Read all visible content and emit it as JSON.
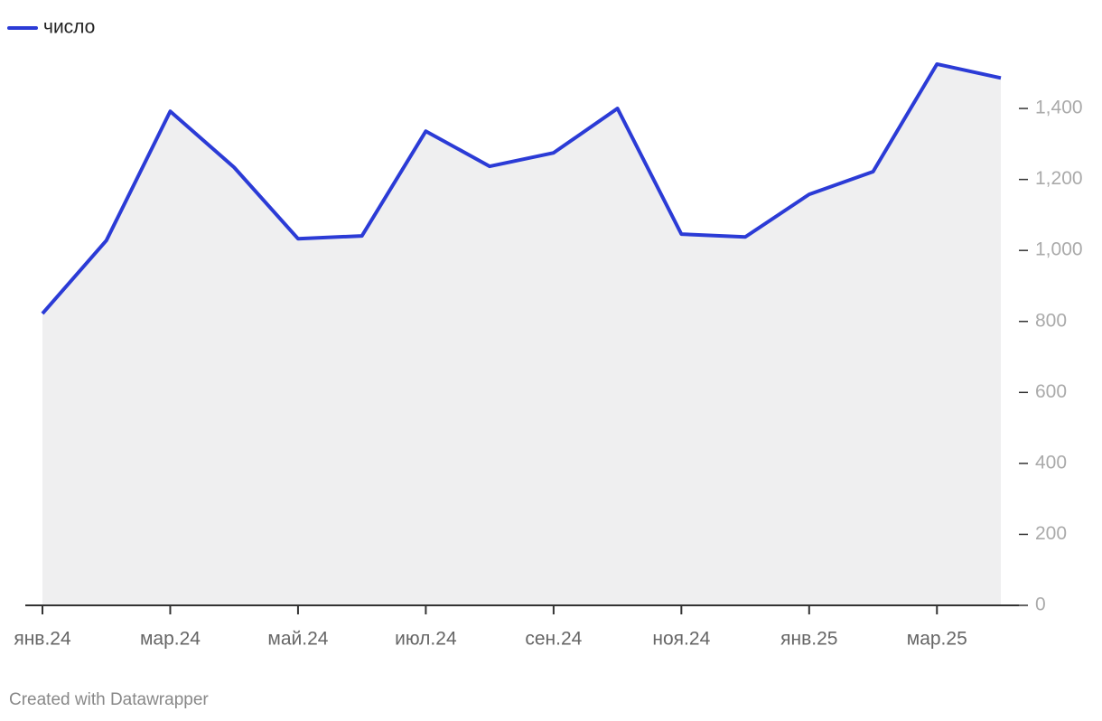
{
  "chart_data": {
    "type": "area",
    "legend": "top-left",
    "categories": [
      "янв.24",
      null,
      "мар.24",
      null,
      "май.24",
      null,
      "июл.24",
      null,
      "сен.24",
      null,
      "ноя.24",
      null,
      "янв.25",
      null,
      "мар.25",
      null
    ],
    "series": [
      {
        "name": "число",
        "color": "#2b3bd6",
        "fill": "#efeff0",
        "values": [
          822,
          1028,
          1392,
          1234,
          1033,
          1041,
          1336,
          1237,
          1275,
          1400,
          1046,
          1038,
          1158,
          1222,
          1525,
          1486
        ]
      }
    ],
    "ylim": [
      0,
      1530
    ],
    "yticks": [
      0,
      200,
      400,
      600,
      800,
      {
        "value": 1000,
        "label": "1,000"
      },
      {
        "value": 1200,
        "label": "1,200"
      },
      {
        "value": 1400,
        "label": "1,400"
      }
    ],
    "credit": "Created with Datawrapper"
  }
}
